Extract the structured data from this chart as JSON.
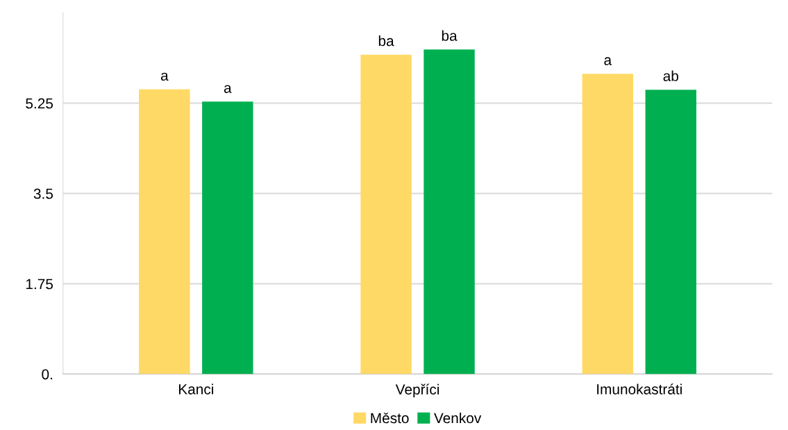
{
  "chart_data": {
    "type": "bar",
    "categories": [
      "Kanci",
      "Vepříci",
      "Imunokastráti"
    ],
    "series": [
      {
        "name": "Město",
        "color": "#ffd966",
        "values": [
          5.52,
          6.19,
          5.82
        ],
        "value_labels": [
          "a",
          "ba",
          "a"
        ]
      },
      {
        "name": "Venkov",
        "color": "#00b050",
        "values": [
          5.28,
          6.29,
          5.51
        ],
        "value_labels": [
          "a",
          "ba",
          "ab"
        ]
      }
    ],
    "ylim": [
      0,
      7
    ],
    "yticks": [
      {
        "value": 0,
        "label": "0."
      },
      1.75,
      3.5,
      5.25
    ],
    "grid": "y",
    "legend": "bottom"
  }
}
